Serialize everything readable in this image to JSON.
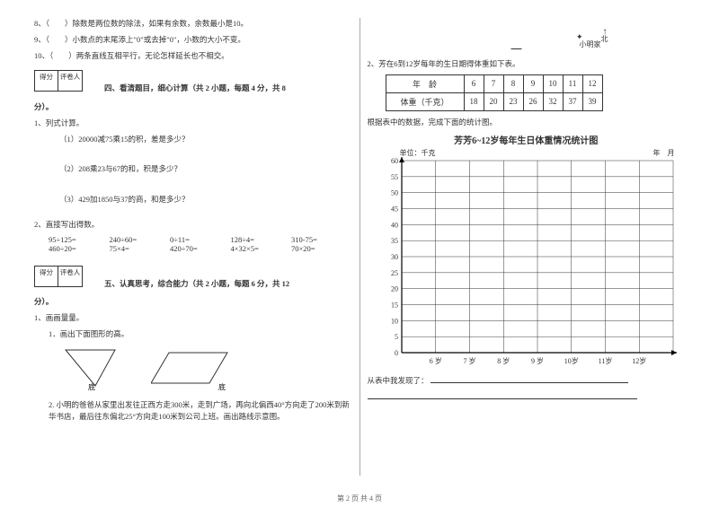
{
  "left": {
    "q8": "8、（　　）除数是两位数的除法，如果有余数，余数最小是10。",
    "q9": "9、（　　）小数点的末尾添上\"0\"或去掉\"0\"，小数的大小不变。",
    "q10": "10、（　　）两条直线互相平行，无论怎样延长也不相交。",
    "scorebox": {
      "a": "得分",
      "b": "评卷人"
    },
    "section4_title": "四、看清题目，细心计算（共 2 小题，每题 4 分，共 8",
    "fen": "分）。",
    "p1": "1、列式计算。",
    "p1_1": "（1）20000减75乘15的积，差是多少？",
    "p1_2": "（2）208乘23与67的和，积是多少？",
    "p1_3": "（3）429加1850与37的商，和是多少？",
    "p2": "2、直接写出得数。",
    "calc_rows": [
      [
        "95÷125=",
        "240÷60=",
        "0÷11=",
        "128÷4=",
        "310-75="
      ],
      [
        "460÷20=",
        "75×4=",
        "420÷70=",
        "4×32×5=",
        "70×20="
      ]
    ],
    "section5_title": "五、认真思考，综合能力（共 2 小题，每题 6 分，共 12",
    "p5_1": "1、画画量量。",
    "p5_1_sub": "1．画出下面图形的高。",
    "shape_labels": {
      "tri": "底",
      "para": "底"
    },
    "p5_2": "2. 小明的爸爸从家里出发往正西方走300米，走到广场，再向北偏西40°方向走了200米到新华书店，最后往东偏北25°方向走100米到公司上班。画出路线示意图。"
  },
  "right": {
    "compass": {
      "north": "北",
      "home_label": "小明家",
      "dot_label": "小明家"
    },
    "q2_intro": "2、芳在6到12岁每年的生日期得体重如下表。",
    "table": {
      "row1": [
        "年　龄",
        "6",
        "7",
        "8",
        "9",
        "10",
        "11",
        "12"
      ],
      "row2": [
        "体重（千克）",
        "18",
        "20",
        "23",
        "26",
        "32",
        "37",
        "39"
      ]
    },
    "table_note": "根据表中的数据，完成下面的统计图。",
    "chart": {
      "title": "芳芳6~12岁每年生日体重情况统计图",
      "ylabel": "单位：千克",
      "date_label": "年　月",
      "y_ticks": [
        0,
        5,
        10,
        15,
        20,
        25,
        30,
        35,
        40,
        45,
        50,
        55,
        60
      ],
      "x_ticks": [
        "6 岁",
        "7 岁",
        "8 岁",
        "9 岁",
        "10岁",
        "11岁",
        "12岁"
      ],
      "grid_color": "#333",
      "bg_color": "#ffffff",
      "axis_color": "#000",
      "font_size": 8
    },
    "findings_label": "从表中我发现了："
  },
  "footer": "第 2 页 共 4 页"
}
